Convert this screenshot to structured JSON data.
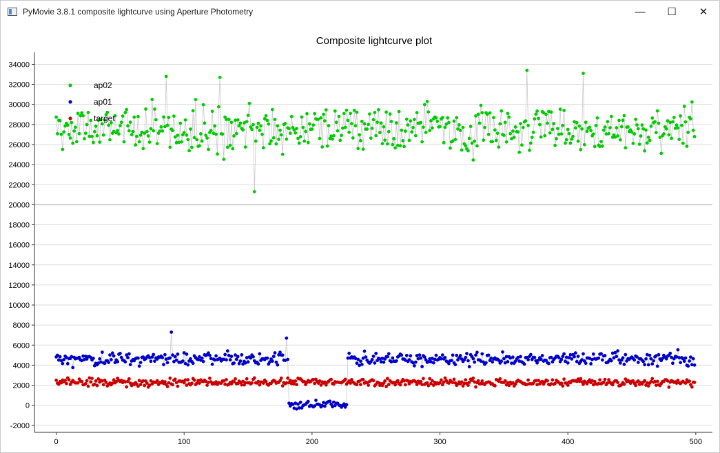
{
  "window": {
    "title": "PyMovie 3.8.1 composite lightcurve using Aperture Photometry",
    "controls": {
      "minimize": "—",
      "maximize": "☐",
      "close": "✕"
    }
  },
  "plot": {
    "title": "Composite lightcurve plot",
    "legend": [
      "ap02",
      "ap01",
      "target"
    ]
  },
  "footer_text": "",
  "colors": {
    "ap02": "#00cc00",
    "ap01": "#0000cc",
    "target": "#cc0000",
    "connector": "#c8c8c8"
  },
  "chart_data": {
    "type": "scatter",
    "title": "Composite lightcurve plot",
    "xlabel": "",
    "ylabel": "",
    "xlim": [
      -17,
      513
    ],
    "ylim": [
      -2700,
      35200
    ],
    "xticks": [
      0,
      100,
      200,
      300,
      400,
      500
    ],
    "yticks": [
      -2000,
      0,
      2000,
      4000,
      6000,
      8000,
      10000,
      12000,
      14000,
      16000,
      18000,
      20000,
      22000,
      24000,
      26000,
      28000,
      30000,
      32000,
      34000
    ],
    "grid": true,
    "legend_position": "top-left",
    "n_points": 500,
    "series": [
      {
        "name": "ap02",
        "approx_mean": 27500,
        "approx_range": [
          21300,
          33400
        ],
        "notable_points": [
          [
            86,
            32800
          ],
          [
            128,
            32700
          ],
          [
            155,
            21300
          ],
          [
            368,
            33400
          ],
          [
            412,
            33100
          ]
        ]
      },
      {
        "name": "ap01",
        "approx_mean": 4600,
        "approx_range": [
          -1000,
          7300
        ],
        "dip": {
          "x_start": 182,
          "x_end": 227,
          "level": 0
        },
        "notable_points": [
          [
            90,
            7300
          ],
          [
            180,
            6700
          ]
        ]
      },
      {
        "name": "target",
        "approx_mean": 2300,
        "approx_range": [
          1000,
          3300
        ]
      }
    ]
  }
}
